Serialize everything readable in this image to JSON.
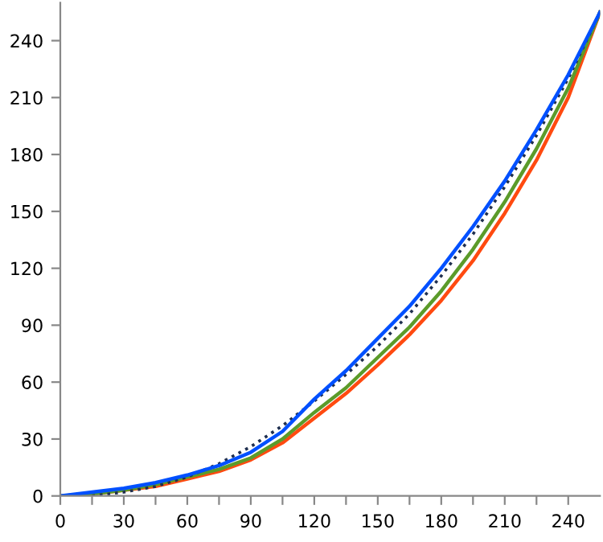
{
  "chart_data": {
    "type": "line",
    "x": [
      0,
      15,
      30,
      45,
      60,
      75,
      90,
      105,
      120,
      135,
      150,
      165,
      180,
      195,
      210,
      225,
      240,
      255
    ],
    "series": [
      {
        "color": "#ff4a10",
        "values": [
          0,
          1,
          3,
          5,
          9,
          13,
          19,
          28,
          41,
          54,
          69,
          85,
          103,
          124,
          149,
          177,
          210,
          255
        ]
      },
      {
        "color": "#5b9b2a",
        "values": [
          0,
          1,
          3,
          6,
          10,
          14,
          20,
          30,
          44,
          57,
          73,
          89,
          108,
          130,
          155,
          183,
          215,
          255
        ]
      },
      {
        "color": "#1f2f4f",
        "line_style": "dotted",
        "values": [
          null,
          0,
          2,
          5,
          10,
          17,
          26,
          37,
          50,
          64,
          79,
          96,
          116,
          138,
          163,
          190,
          220,
          255
        ]
      },
      {
        "color": "#0050ff",
        "values": [
          0,
          2,
          4,
          7,
          11,
          16,
          23,
          34,
          51,
          66,
          83,
          100,
          120,
          142,
          166,
          193,
          222,
          255
        ]
      }
    ],
    "xlim": [
      0,
      255
    ],
    "ylim": [
      0,
      260
    ],
    "xticks": [
      0,
      {
        "value": 15,
        "label": null
      },
      30,
      {
        "value": 45,
        "label": null
      },
      60,
      {
        "value": 75,
        "label": null
      },
      90,
      {
        "value": 105,
        "label": null
      },
      120,
      {
        "value": 135,
        "label": null
      },
      150,
      {
        "value": 165,
        "label": null
      },
      180,
      {
        "value": 195,
        "label": null
      },
      210,
      {
        "value": 225,
        "label": null
      },
      240
    ],
    "yticks": [
      0,
      30,
      60,
      90,
      120,
      150,
      180,
      210,
      240
    ],
    "grid": false,
    "legend": false,
    "marker": "none",
    "line_style": "solid"
  }
}
